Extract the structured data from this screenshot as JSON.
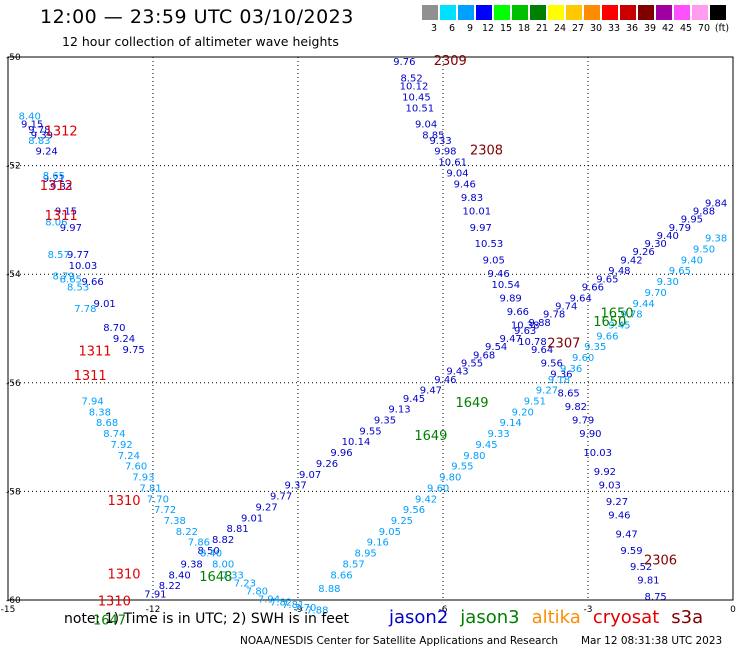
{
  "header": {
    "title": "12:00 — 23:59 UTC 03/10/2023",
    "subtitle": "12 hour collection of altimeter wave heights"
  },
  "colorbar": {
    "cells": [
      "#909090",
      "#00e0ff",
      "#00a0ff",
      "#0000ff",
      "#00ff00",
      "#00c000",
      "#008000",
      "#ffff00",
      "#ffc800",
      "#ff8c00",
      "#ff0000",
      "#c80000",
      "#800000",
      "#a000a0",
      "#ff50ff",
      "#ff9cf0",
      "#000000"
    ],
    "labels": [
      "3",
      "6",
      "9",
      "12",
      "15",
      "18",
      "21",
      "24",
      "27",
      "30",
      "33",
      "36",
      "39",
      "42",
      "45",
      "70",
      "(ft)"
    ]
  },
  "footer": {
    "note": "note:  1) Time is in UTC;  2) SWH is in feet",
    "credit": "NOAA/NESDIS Center for Satellite Applications and Research",
    "stamp": "Mar 12 08:31:38 UTC 2023"
  },
  "chart_data": {
    "type": "scatter",
    "xlim": [
      -15,
      0
    ],
    "ylim": [
      -60,
      -50
    ],
    "x_ticks": [
      "-15",
      "-12",
      "-9",
      "-6",
      "-3",
      "0"
    ],
    "y_ticks": [
      "-50",
      "-52",
      "-54",
      "-56",
      "-58",
      "-60"
    ],
    "grid": true,
    "satellites": [
      {
        "name": "jason2",
        "color": "#0000cc"
      },
      {
        "name": "jason3",
        "color": "#008000"
      },
      {
        "name": "altika",
        "color": "#ff8c00"
      },
      {
        "name": "cryosat",
        "color": "#e00000"
      },
      {
        "name": "s3a",
        "color": "#800000"
      }
    ],
    "time_labels": [
      {
        "text": "2309",
        "color": "#800000",
        "x": -5.85,
        "y": -50.15
      },
      {
        "text": "2308",
        "color": "#800000",
        "x": -5.1,
        "y": -51.8
      },
      {
        "text": "2307",
        "color": "#800000",
        "x": -3.5,
        "y": -55.35
      },
      {
        "text": "2306",
        "color": "#800000",
        "x": -1.5,
        "y": -59.35
      },
      {
        "text": "1312",
        "color": "#e00000",
        "x": -13.9,
        "y": -51.45
      },
      {
        "text": "1312",
        "color": "#e00000",
        "x": -14.0,
        "y": -52.45
      },
      {
        "text": "1311",
        "color": "#e00000",
        "x": -13.9,
        "y": -53.0
      },
      {
        "text": "1311",
        "color": "#e00000",
        "x": -13.2,
        "y": -55.5
      },
      {
        "text": "1311",
        "color": "#e00000",
        "x": -13.3,
        "y": -55.95
      },
      {
        "text": "1310",
        "color": "#e00000",
        "x": -12.6,
        "y": -58.25
      },
      {
        "text": "1310",
        "color": "#e00000",
        "x": -12.6,
        "y": -59.6
      },
      {
        "text": "1310",
        "color": "#e00000",
        "x": -12.8,
        "y": -60.1
      },
      {
        "text": "1650",
        "color": "#008000",
        "x": -2.4,
        "y": -54.8
      },
      {
        "text": "1650",
        "color": "#008000",
        "x": -2.55,
        "y": -54.95
      },
      {
        "text": "1649",
        "color": "#008000",
        "x": -5.4,
        "y": -56.45
      },
      {
        "text": "1649",
        "color": "#008000",
        "x": -6.25,
        "y": -57.05
      },
      {
        "text": "1648",
        "color": "#008000",
        "x": -10.7,
        "y": -59.65
      },
      {
        "text": "1647",
        "color": "#008000",
        "x": -12.9,
        "y": -60.45
      }
    ],
    "series": [
      {
        "name": "jason2",
        "color": "#0000cc",
        "x": [
          -6.8,
          -6.65,
          -6.6,
          -6.55,
          -6.48,
          -6.35,
          -6.2,
          -6.05,
          -5.95,
          -5.8,
          -5.7,
          -5.55,
          -5.4,
          -5.3,
          -5.22,
          -5.05,
          -4.95,
          -4.85,
          -4.7,
          -4.6,
          -4.45,
          -4.3,
          -4.15,
          -3.95,
          -3.75,
          -3.55,
          -3.4,
          -3.25,
          -3.1,
          -2.95,
          -2.8,
          -2.65,
          -2.55,
          -2.4,
          -2.35,
          -2.2,
          -2.1,
          -1.9,
          -1.75,
          -1.6
        ],
        "y": [
          -50.15,
          -50.45,
          -50.6,
          -50.8,
          -51.0,
          -51.3,
          -51.5,
          -51.6,
          -51.8,
          -52.0,
          -52.2,
          -52.4,
          -52.65,
          -52.9,
          -53.2,
          -53.5,
          -53.8,
          -54.05,
          -54.25,
          -54.5,
          -54.75,
          -55.0,
          -55.3,
          -55.45,
          -55.7,
          -55.9,
          -56.25,
          -56.5,
          -56.75,
          -57.0,
          -57.35,
          -57.7,
          -57.95,
          -58.25,
          -58.5,
          -58.85,
          -59.15,
          -59.45,
          -59.7,
          -60.0
        ],
        "values": [
          9.76,
          8.52,
          10.12,
          10.45,
          10.51,
          9.04,
          8.85,
          9.33,
          9.98,
          10.61,
          9.04,
          9.46,
          9.83,
          10.01,
          9.97,
          10.53,
          9.05,
          9.46,
          10.54,
          9.89,
          9.66,
          10.38,
          10.78,
          9.64,
          9.56,
          9.36,
          8.65,
          9.82,
          9.79,
          9.9,
          10.03,
          9.92,
          9.03,
          9.27,
          9.46,
          9.47,
          9.59,
          9.52,
          9.81,
          8.75
        ]
      },
      {
        "name": "jason3",
        "color": "#0000cc",
        "x": [
          -14.5,
          -14.35,
          -14.3,
          -14.2,
          -14.05,
          -13.9,
          -13.8,
          -13.7,
          -13.55,
          -13.45,
          -13.25,
          -13.0,
          -12.8,
          -12.6,
          -12.4,
          -11.95,
          -11.65,
          -11.45,
          -11.2,
          -10.85,
          -10.55,
          -10.25,
          -9.95,
          -9.65,
          -9.35,
          -9.05,
          -8.75,
          -8.4,
          -8.1,
          -7.8,
          -7.5,
          -7.2,
          -6.9,
          -6.6,
          -6.25,
          -5.95,
          -5.7,
          -5.4,
          -5.15,
          -4.9,
          -4.6,
          -4.3,
          -4.0,
          -3.7,
          -3.45,
          -3.15,
          -2.9,
          -2.6,
          -2.35,
          -2.1,
          -1.85,
          -1.6,
          -1.35,
          -1.1,
          -0.85,
          -0.6,
          -0.35,
          -0.05
        ],
        "y": [
          -51.3,
          -51.4,
          -51.5,
          -51.8,
          -52.3,
          -52.45,
          -52.9,
          -53.2,
          -53.7,
          -53.9,
          -54.2,
          -54.6,
          -55.05,
          -55.25,
          -55.45,
          -59.95,
          -59.8,
          -59.6,
          -59.4,
          -59.15,
          -58.95,
          -58.75,
          -58.55,
          -58.35,
          -58.15,
          -57.95,
          -57.75,
          -57.55,
          -57.35,
          -57.15,
          -56.95,
          -56.75,
          -56.55,
          -56.35,
          -56.2,
          -56.0,
          -55.85,
          -55.7,
          -55.55,
          -55.4,
          -55.25,
          -55.1,
          -54.95,
          -54.8,
          -54.65,
          -54.5,
          -54.3,
          -54.15,
          -54.0,
          -53.8,
          -53.65,
          -53.5,
          -53.35,
          -53.2,
          -53.05,
          -52.9,
          -52.75,
          -52.55
        ],
        "values": [
          9.15,
          9.78,
          9.39,
          9.24,
          9.21,
          9.33,
          9.15,
          9.97,
          9.77,
          10.03,
          9.66,
          9.01,
          8.7,
          9.24,
          9.75,
          7.91,
          8.22,
          8.4,
          9.38,
          8.5,
          8.82,
          8.81,
          9.01,
          9.27,
          9.77,
          9.37,
          9.07,
          9.26,
          9.96,
          10.14,
          9.55,
          9.35,
          9.13,
          9.45,
          9.47,
          9.46,
          9.43,
          9.55,
          9.68,
          9.54,
          9.47,
          9.63,
          9.88,
          9.78,
          9.74,
          9.64,
          9.66,
          9.65,
          9.48,
          9.42,
          9.26,
          9.3,
          9.4,
          9.79,
          9.95,
          9.88,
          9.84,
          9.82
        ]
      },
      {
        "name": "altika",
        "color": "#00a0ff",
        "x": [
          -14.55,
          -14.35,
          -14.05,
          -14.0,
          -13.95,
          -13.85,
          -13.7,
          -13.55,
          -13.4,
          -13.25,
          -13.1,
          -12.95,
          -12.8,
          -12.65,
          -12.5,
          -12.35,
          -12.2,
          -12.05,
          -11.9,
          -11.75,
          -11.55,
          -11.3,
          -11.05,
          -10.8,
          -10.55,
          -10.35,
          -10.1,
          -9.85,
          -9.6,
          -9.35,
          -9.1,
          -8.85,
          -8.6,
          -8.35,
          -8.1,
          -7.85,
          -7.6,
          -7.35,
          -7.1,
          -6.85,
          -6.6,
          -6.35,
          -6.1,
          -5.85,
          -5.6,
          -5.35,
          -5.1,
          -4.85,
          -4.6,
          -4.35,
          -4.1,
          -3.85,
          -3.6,
          -3.35,
          -3.1,
          -2.85,
          -2.6,
          -2.35,
          -2.1,
          -1.85,
          -1.6,
          -1.35,
          -1.1,
          -0.85,
          -0.6,
          -0.35
        ],
        "y": [
          -51.15,
          -51.6,
          -52.25,
          -53.1,
          -53.7,
          -54.1,
          -54.15,
          -54.3,
          -54.7,
          -56.4,
          -56.6,
          -56.8,
          -57.0,
          -57.2,
          -57.4,
          -57.6,
          -57.8,
          -58.0,
          -58.2,
          -58.4,
          -58.6,
          -58.8,
          -59.0,
          -59.2,
          -59.4,
          -59.6,
          -59.75,
          -59.9,
          -60.05,
          -60.1,
          -60.15,
          -60.2,
          -60.25,
          -59.85,
          -59.6,
          -59.4,
          -59.2,
          -59.0,
          -58.8,
          -58.6,
          -58.4,
          -58.2,
          -58.0,
          -57.8,
          -57.6,
          -57.4,
          -57.2,
          -57.0,
          -56.8,
          -56.6,
          -56.4,
          -56.2,
          -56.0,
          -55.8,
          -55.6,
          -55.4,
          -55.2,
          -55.0,
          -54.8,
          -54.6,
          -54.4,
          -54.2,
          -54.0,
          -53.8,
          -53.6,
          -53.4
        ],
        "values": [
          8.4,
          8.83,
          8.65,
          8.06,
          8.57,
          8.79,
          8.65,
          8.53,
          7.78,
          7.94,
          8.38,
          8.68,
          8.74,
          7.92,
          7.24,
          7.6,
          7.93,
          7.81,
          7.7,
          7.72,
          7.38,
          8.22,
          7.86,
          8.4,
          8.0,
          7.33,
          7.23,
          7.8,
          7.94,
          7.82,
          7.81,
          7.7,
          7.88,
          8.88,
          8.66,
          8.57,
          8.95,
          9.16,
          9.05,
          9.25,
          9.56,
          9.42,
          9.6,
          9.8,
          9.55,
          9.8,
          9.45,
          9.33,
          9.14,
          9.2,
          9.51,
          9.27,
          9.18,
          9.36,
          9.6,
          9.35,
          9.66,
          9.45,
          9.78,
          9.44,
          9.7,
          9.3,
          9.65,
          9.4,
          9.5,
          9.38
        ]
      }
    ]
  }
}
